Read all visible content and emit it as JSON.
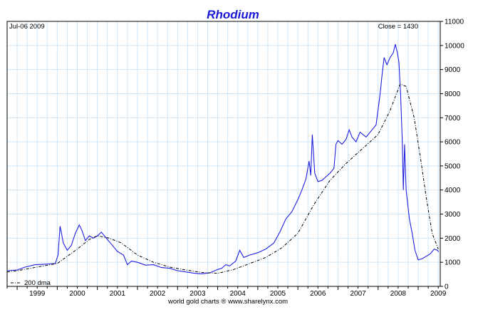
{
  "chart_data": {
    "type": "line",
    "title": "Rhodium",
    "date_label": "Jul-06  2009",
    "close_label": "Close = 1430",
    "source": "world gold charts ® www.sharelynx.com",
    "legend": [
      {
        "label": "200 dma",
        "style": "dash-dot",
        "color": "#000000"
      }
    ],
    "legend_position": "bottom-left",
    "grid": true,
    "xlim": [
      1998.75,
      2009.55
    ],
    "ylim": [
      0,
      11000
    ],
    "x_ticks": [
      1999,
      2000,
      2001,
      2002,
      2003,
      2004,
      2005,
      2006,
      2007,
      2008,
      2009
    ],
    "x_tick_labels": [
      "1999",
      "2000",
      "2001",
      "2002",
      "2003",
      "2004",
      "2005",
      "2006",
      "2007",
      "2008",
      "2009"
    ],
    "y_ticks": [
      0,
      1000,
      2000,
      3000,
      4000,
      5000,
      6000,
      7000,
      8000,
      9000,
      10000,
      11000
    ],
    "y_tick_labels": [
      "0",
      "1000",
      "2000",
      "3000",
      "4000",
      "5000",
      "6000",
      "7000",
      "8000",
      "9000",
      "10000",
      "11000"
    ],
    "series": [
      {
        "color": "#1f1fe0",
        "style": "solid",
        "points": [
          [
            1998.75,
            650
          ],
          [
            1999.0,
            680
          ],
          [
            1999.2,
            800
          ],
          [
            1999.45,
            900
          ],
          [
            1999.7,
            920
          ],
          [
            1999.95,
            950
          ],
          [
            2000.02,
            1300
          ],
          [
            2000.07,
            2500
          ],
          [
            2000.1,
            2250
          ],
          [
            2000.15,
            1800
          ],
          [
            2000.25,
            1500
          ],
          [
            2000.35,
            1700
          ],
          [
            2000.45,
            2200
          ],
          [
            2000.55,
            2550
          ],
          [
            2000.62,
            2300
          ],
          [
            2000.7,
            1900
          ],
          [
            2000.8,
            2100
          ],
          [
            2000.9,
            2000
          ],
          [
            2001.0,
            2100
          ],
          [
            2001.1,
            2250
          ],
          [
            2001.2,
            2050
          ],
          [
            2001.35,
            1750
          ],
          [
            2001.5,
            1450
          ],
          [
            2001.65,
            1300
          ],
          [
            2001.75,
            900
          ],
          [
            2001.85,
            1050
          ],
          [
            2002.0,
            1000
          ],
          [
            2002.2,
            880
          ],
          [
            2002.4,
            900
          ],
          [
            2002.6,
            780
          ],
          [
            2002.8,
            750
          ],
          [
            2003.0,
            650
          ],
          [
            2003.2,
            600
          ],
          [
            2003.4,
            550
          ],
          [
            2003.6,
            520
          ],
          [
            2003.8,
            560
          ],
          [
            2004.0,
            700
          ],
          [
            2004.1,
            750
          ],
          [
            2004.2,
            900
          ],
          [
            2004.3,
            850
          ],
          [
            2004.45,
            1050
          ],
          [
            2004.55,
            1500
          ],
          [
            2004.65,
            1200
          ],
          [
            2004.8,
            1300
          ],
          [
            2005.0,
            1400
          ],
          [
            2005.2,
            1550
          ],
          [
            2005.4,
            1800
          ],
          [
            2005.55,
            2250
          ],
          [
            2005.7,
            2800
          ],
          [
            2005.85,
            3100
          ],
          [
            2006.0,
            3600
          ],
          [
            2006.1,
            4000
          ],
          [
            2006.2,
            4450
          ],
          [
            2006.28,
            5200
          ],
          [
            2006.32,
            4600
          ],
          [
            2006.36,
            6300
          ],
          [
            2006.42,
            4700
          ],
          [
            2006.5,
            4350
          ],
          [
            2006.6,
            4400
          ],
          [
            2006.7,
            4550
          ],
          [
            2006.8,
            4700
          ],
          [
            2006.9,
            4900
          ],
          [
            2006.95,
            5900
          ],
          [
            2007.0,
            6050
          ],
          [
            2007.1,
            5900
          ],
          [
            2007.2,
            6100
          ],
          [
            2007.28,
            6500
          ],
          [
            2007.35,
            6200
          ],
          [
            2007.45,
            6000
          ],
          [
            2007.55,
            6400
          ],
          [
            2007.7,
            6200
          ],
          [
            2007.85,
            6500
          ],
          [
            2007.95,
            6700
          ],
          [
            2008.05,
            8000
          ],
          [
            2008.1,
            8800
          ],
          [
            2008.15,
            9500
          ],
          [
            2008.22,
            9200
          ],
          [
            2008.3,
            9500
          ],
          [
            2008.38,
            9700
          ],
          [
            2008.43,
            10050
          ],
          [
            2008.48,
            9700
          ],
          [
            2008.52,
            9300
          ],
          [
            2008.56,
            8000
          ],
          [
            2008.6,
            6200
          ],
          [
            2008.63,
            4000
          ],
          [
            2008.66,
            5900
          ],
          [
            2008.7,
            4000
          ],
          [
            2008.78,
            2800
          ],
          [
            2008.85,
            2200
          ],
          [
            2008.92,
            1500
          ],
          [
            2009.0,
            1100
          ],
          [
            2009.1,
            1150
          ],
          [
            2009.2,
            1250
          ],
          [
            2009.3,
            1350
          ],
          [
            2009.4,
            1550
          ],
          [
            2009.48,
            1500
          ],
          [
            2009.51,
            1430
          ]
        ]
      },
      {
        "name": "200 dma",
        "color": "#000000",
        "style": "dash-dot",
        "points": [
          [
            1998.75,
            600
          ],
          [
            1999.0,
            650
          ],
          [
            1999.5,
            800
          ],
          [
            2000.0,
            950
          ],
          [
            2000.5,
            1550
          ],
          [
            2000.8,
            1950
          ],
          [
            2001.0,
            2100
          ],
          [
            2001.3,
            2000
          ],
          [
            2001.6,
            1800
          ],
          [
            2002.0,
            1300
          ],
          [
            2002.4,
            1000
          ],
          [
            2002.8,
            800
          ],
          [
            2003.2,
            680
          ],
          [
            2003.6,
            580
          ],
          [
            2004.0,
            540
          ],
          [
            2004.4,
            700
          ],
          [
            2004.8,
            950
          ],
          [
            2005.2,
            1200
          ],
          [
            2005.6,
            1600
          ],
          [
            2006.0,
            2200
          ],
          [
            2006.4,
            3400
          ],
          [
            2006.8,
            4400
          ],
          [
            2007.2,
            5100
          ],
          [
            2007.6,
            5700
          ],
          [
            2008.0,
            6300
          ],
          [
            2008.3,
            7300
          ],
          [
            2008.55,
            8400
          ],
          [
            2008.7,
            8300
          ],
          [
            2008.9,
            7000
          ],
          [
            2009.05,
            5400
          ],
          [
            2009.2,
            3700
          ],
          [
            2009.35,
            2200
          ],
          [
            2009.5,
            1550
          ]
        ]
      }
    ]
  }
}
